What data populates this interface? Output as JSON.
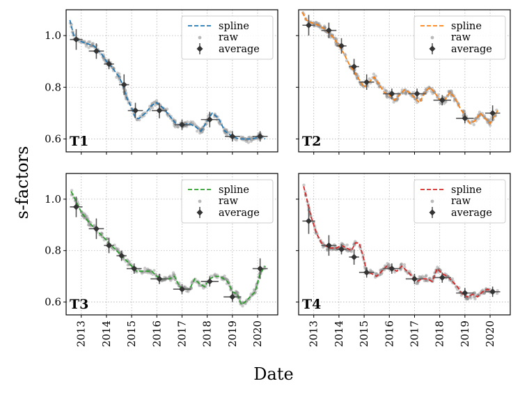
{
  "figure": {
    "ylabel": "s-factors",
    "xlabel": "Date"
  },
  "chart_data": [
    {
      "type": "scatter",
      "panel": "T1",
      "line_color": "#1f77b4",
      "legend": {
        "spline": "spline",
        "raw": "raw",
        "average": "average",
        "position": "top-right"
      },
      "xlim": [
        2012.4,
        2020.8
      ],
      "ylim": [
        0.55,
        1.1
      ],
      "x_ticks": [
        "2013",
        "2014",
        "2015",
        "2016",
        "2017",
        "2018",
        "2019",
        "2020"
      ],
      "y_ticks": [
        "0.6",
        "0.8",
        "1.0"
      ],
      "spline": {
        "x": [
          2012.55,
          2012.7,
          2012.9,
          2013.2,
          2013.5,
          2013.8,
          2014.0,
          2014.2,
          2014.35,
          2014.5,
          2014.65,
          2014.8,
          2015.0,
          2015.15,
          2015.3,
          2015.55,
          2015.8,
          2016.0,
          2016.25,
          2016.5,
          2016.75,
          2017.0,
          2017.25,
          2017.5,
          2017.75,
          2018.0,
          2018.2,
          2018.45,
          2018.7,
          2019.0,
          2019.25,
          2019.5,
          2019.8,
          2020.1,
          2020.3
        ],
        "y": [
          1.06,
          1.0,
          0.98,
          0.97,
          0.96,
          0.93,
          0.9,
          0.88,
          0.86,
          0.84,
          0.81,
          0.76,
          0.72,
          0.68,
          0.68,
          0.7,
          0.73,
          0.74,
          0.72,
          0.69,
          0.66,
          0.65,
          0.66,
          0.65,
          0.63,
          0.67,
          0.7,
          0.68,
          0.63,
          0.61,
          0.6,
          0.6,
          0.6,
          0.61,
          0.6
        ]
      },
      "average": [
        {
          "x": 2012.8,
          "y": 0.985,
          "xerr": 0.25,
          "yerr": 0.04
        },
        {
          "x": 2013.6,
          "y": 0.94,
          "xerr": 0.3,
          "yerr": 0.03
        },
        {
          "x": 2014.1,
          "y": 0.89,
          "xerr": 0.2,
          "yerr": 0.02
        },
        {
          "x": 2014.7,
          "y": 0.81,
          "xerr": 0.2,
          "yerr": 0.04
        },
        {
          "x": 2015.15,
          "y": 0.71,
          "xerr": 0.3,
          "yerr": 0.03
        },
        {
          "x": 2016.1,
          "y": 0.71,
          "xerr": 0.3,
          "yerr": 0.03
        },
        {
          "x": 2017.0,
          "y": 0.655,
          "xerr": 0.3,
          "yerr": 0.02
        },
        {
          "x": 2018.1,
          "y": 0.675,
          "xerr": 0.35,
          "yerr": 0.03
        },
        {
          "x": 2019.0,
          "y": 0.61,
          "xerr": 0.3,
          "yerr": 0.02
        },
        {
          "x": 2020.1,
          "y": 0.61,
          "xerr": 0.3,
          "yerr": 0.02
        }
      ]
    },
    {
      "type": "scatter",
      "panel": "T2",
      "line_color": "#ff7f0e",
      "legend": {
        "spline": "spline",
        "raw": "raw",
        "average": "average",
        "position": "top-right"
      },
      "xlim": [
        2012.4,
        2020.8
      ],
      "ylim": [
        0.55,
        1.1
      ],
      "x_ticks": [
        "2013",
        "2014",
        "2015",
        "2016",
        "2017",
        "2018",
        "2019",
        "2020"
      ],
      "y_ticks": [
        "0.6",
        "0.8",
        "1.0"
      ],
      "spline": {
        "x": [
          2012.55,
          2012.7,
          2012.9,
          2013.2,
          2013.5,
          2013.8,
          2014.0,
          2014.2,
          2014.4,
          2014.6,
          2014.8,
          2015.0,
          2015.2,
          2015.4,
          2015.6,
          2015.8,
          2016.0,
          2016.2,
          2016.4,
          2016.6,
          2016.8,
          2017.0,
          2017.2,
          2017.4,
          2017.6,
          2017.8,
          2018.0,
          2018.2,
          2018.4,
          2018.6,
          2018.8,
          2019.0,
          2019.2,
          2019.4,
          2019.6,
          2019.8,
          2020.0,
          2020.3
        ],
        "y": [
          1.09,
          1.06,
          1.05,
          1.04,
          1.02,
          0.99,
          0.96,
          0.93,
          0.89,
          0.86,
          0.83,
          0.8,
          0.82,
          0.84,
          0.81,
          0.78,
          0.77,
          0.75,
          0.77,
          0.79,
          0.78,
          0.76,
          0.74,
          0.78,
          0.8,
          0.78,
          0.75,
          0.75,
          0.78,
          0.76,
          0.72,
          0.69,
          0.66,
          0.67,
          0.7,
          0.68,
          0.66,
          0.71
        ]
      },
      "average": [
        {
          "x": 2012.8,
          "y": 1.04,
          "xerr": 0.25,
          "yerr": 0.04
        },
        {
          "x": 2013.6,
          "y": 1.02,
          "xerr": 0.3,
          "yerr": 0.03
        },
        {
          "x": 2014.1,
          "y": 0.96,
          "xerr": 0.2,
          "yerr": 0.03
        },
        {
          "x": 2014.6,
          "y": 0.88,
          "xerr": 0.2,
          "yerr": 0.03
        },
        {
          "x": 2015.1,
          "y": 0.82,
          "xerr": 0.3,
          "yerr": 0.03
        },
        {
          "x": 2016.1,
          "y": 0.775,
          "xerr": 0.35,
          "yerr": 0.02
        },
        {
          "x": 2017.1,
          "y": 0.775,
          "xerr": 0.35,
          "yerr": 0.02
        },
        {
          "x": 2018.1,
          "y": 0.75,
          "xerr": 0.35,
          "yerr": 0.02
        },
        {
          "x": 2019.0,
          "y": 0.68,
          "xerr": 0.35,
          "yerr": 0.02
        },
        {
          "x": 2020.1,
          "y": 0.7,
          "xerr": 0.3,
          "yerr": 0.03
        }
      ]
    },
    {
      "type": "scatter",
      "panel": "T3",
      "line_color": "#2ca02c",
      "legend": {
        "spline": "spline",
        "raw": "raw",
        "average": "average",
        "position": "top-right"
      },
      "xlim": [
        2012.4,
        2020.8
      ],
      "ylim": [
        0.55,
        1.1
      ],
      "x_ticks": [
        "2013",
        "2014",
        "2015",
        "2016",
        "2017",
        "2018",
        "2019",
        "2020"
      ],
      "y_ticks": [
        "0.6",
        "0.8",
        "1.0"
      ],
      "spline": {
        "x": [
          2012.6,
          2012.8,
          2013.0,
          2013.3,
          2013.6,
          2013.9,
          2014.2,
          2014.5,
          2014.8,
          2015.0,
          2015.2,
          2015.5,
          2015.8,
          2016.0,
          2016.2,
          2016.5,
          2016.7,
          2016.9,
          2017.1,
          2017.3,
          2017.5,
          2017.7,
          2017.9,
          2018.1,
          2018.3,
          2018.5,
          2018.8,
          2019.0,
          2019.2,
          2019.35,
          2019.5,
          2019.7,
          2019.9,
          2020.1,
          2020.3
        ],
        "y": [
          1.03,
          0.99,
          0.95,
          0.91,
          0.88,
          0.85,
          0.82,
          0.79,
          0.76,
          0.74,
          0.72,
          0.72,
          0.72,
          0.7,
          0.69,
          0.69,
          0.7,
          0.66,
          0.65,
          0.65,
          0.69,
          0.67,
          0.66,
          0.69,
          0.7,
          0.7,
          0.68,
          0.64,
          0.63,
          0.59,
          0.6,
          0.62,
          0.64,
          0.71,
          0.74
        ]
      },
      "average": [
        {
          "x": 2012.8,
          "y": 0.97,
          "xerr": 0.25,
          "yerr": 0.04
        },
        {
          "x": 2013.6,
          "y": 0.885,
          "xerr": 0.3,
          "yerr": 0.04
        },
        {
          "x": 2014.1,
          "y": 0.82,
          "xerr": 0.2,
          "yerr": 0.03
        },
        {
          "x": 2014.6,
          "y": 0.78,
          "xerr": 0.2,
          "yerr": 0.02
        },
        {
          "x": 2015.1,
          "y": 0.73,
          "xerr": 0.3,
          "yerr": 0.02
        },
        {
          "x": 2016.1,
          "y": 0.69,
          "xerr": 0.35,
          "yerr": 0.02
        },
        {
          "x": 2017.0,
          "y": 0.65,
          "xerr": 0.35,
          "yerr": 0.02
        },
        {
          "x": 2018.1,
          "y": 0.68,
          "xerr": 0.35,
          "yerr": 0.02
        },
        {
          "x": 2019.0,
          "y": 0.62,
          "xerr": 0.35,
          "yerr": 0.02
        },
        {
          "x": 2020.1,
          "y": 0.73,
          "xerr": 0.3,
          "yerr": 0.04
        }
      ]
    },
    {
      "type": "scatter",
      "panel": "T4",
      "line_color": "#d62728",
      "legend": {
        "spline": "spline",
        "raw": "raw",
        "average": "average",
        "position": "top-right"
      },
      "xlim": [
        2012.4,
        2020.8
      ],
      "ylim": [
        0.55,
        1.1
      ],
      "x_ticks": [
        "2013",
        "2014",
        "2015",
        "2016",
        "2017",
        "2018",
        "2019",
        "2020"
      ],
      "y_ticks": [
        "0.6",
        "0.8",
        "1.0"
      ],
      "spline": {
        "x": [
          2012.6,
          2012.75,
          2012.9,
          2013.1,
          2013.3,
          2013.6,
          2013.9,
          2014.1,
          2014.3,
          2014.5,
          2014.65,
          2014.8,
          2014.95,
          2015.1,
          2015.3,
          2015.5,
          2015.7,
          2015.9,
          2016.1,
          2016.3,
          2016.5,
          2016.7,
          2016.9,
          2017.1,
          2017.3,
          2017.5,
          2017.7,
          2017.9,
          2018.1,
          2018.3,
          2018.5,
          2018.7,
          2018.9,
          2019.1,
          2019.3,
          2019.5,
          2019.7,
          2019.9,
          2020.1,
          2020.3
        ],
        "y": [
          1.05,
          0.99,
          0.93,
          0.87,
          0.83,
          0.81,
          0.81,
          0.82,
          0.81,
          0.8,
          0.83,
          0.83,
          0.78,
          0.72,
          0.71,
          0.7,
          0.72,
          0.74,
          0.73,
          0.72,
          0.74,
          0.72,
          0.7,
          0.68,
          0.69,
          0.69,
          0.68,
          0.73,
          0.71,
          0.7,
          0.68,
          0.66,
          0.63,
          0.62,
          0.63,
          0.62,
          0.64,
          0.65,
          0.64,
          0.64
        ]
      },
      "average": [
        {
          "x": 2012.8,
          "y": 0.915,
          "xerr": 0.25,
          "yerr": 0.05
        },
        {
          "x": 2013.6,
          "y": 0.82,
          "xerr": 0.3,
          "yerr": 0.04
        },
        {
          "x": 2014.1,
          "y": 0.805,
          "xerr": 0.2,
          "yerr": 0.02
        },
        {
          "x": 2014.6,
          "y": 0.775,
          "xerr": 0.2,
          "yerr": 0.03
        },
        {
          "x": 2015.1,
          "y": 0.715,
          "xerr": 0.3,
          "yerr": 0.02
        },
        {
          "x": 2016.1,
          "y": 0.73,
          "xerr": 0.35,
          "yerr": 0.02
        },
        {
          "x": 2017.0,
          "y": 0.69,
          "xerr": 0.35,
          "yerr": 0.02
        },
        {
          "x": 2018.1,
          "y": 0.695,
          "xerr": 0.35,
          "yerr": 0.02
        },
        {
          "x": 2019.0,
          "y": 0.635,
          "xerr": 0.35,
          "yerr": 0.02
        },
        {
          "x": 2020.1,
          "y": 0.64,
          "xerr": 0.3,
          "yerr": 0.02
        }
      ]
    }
  ]
}
